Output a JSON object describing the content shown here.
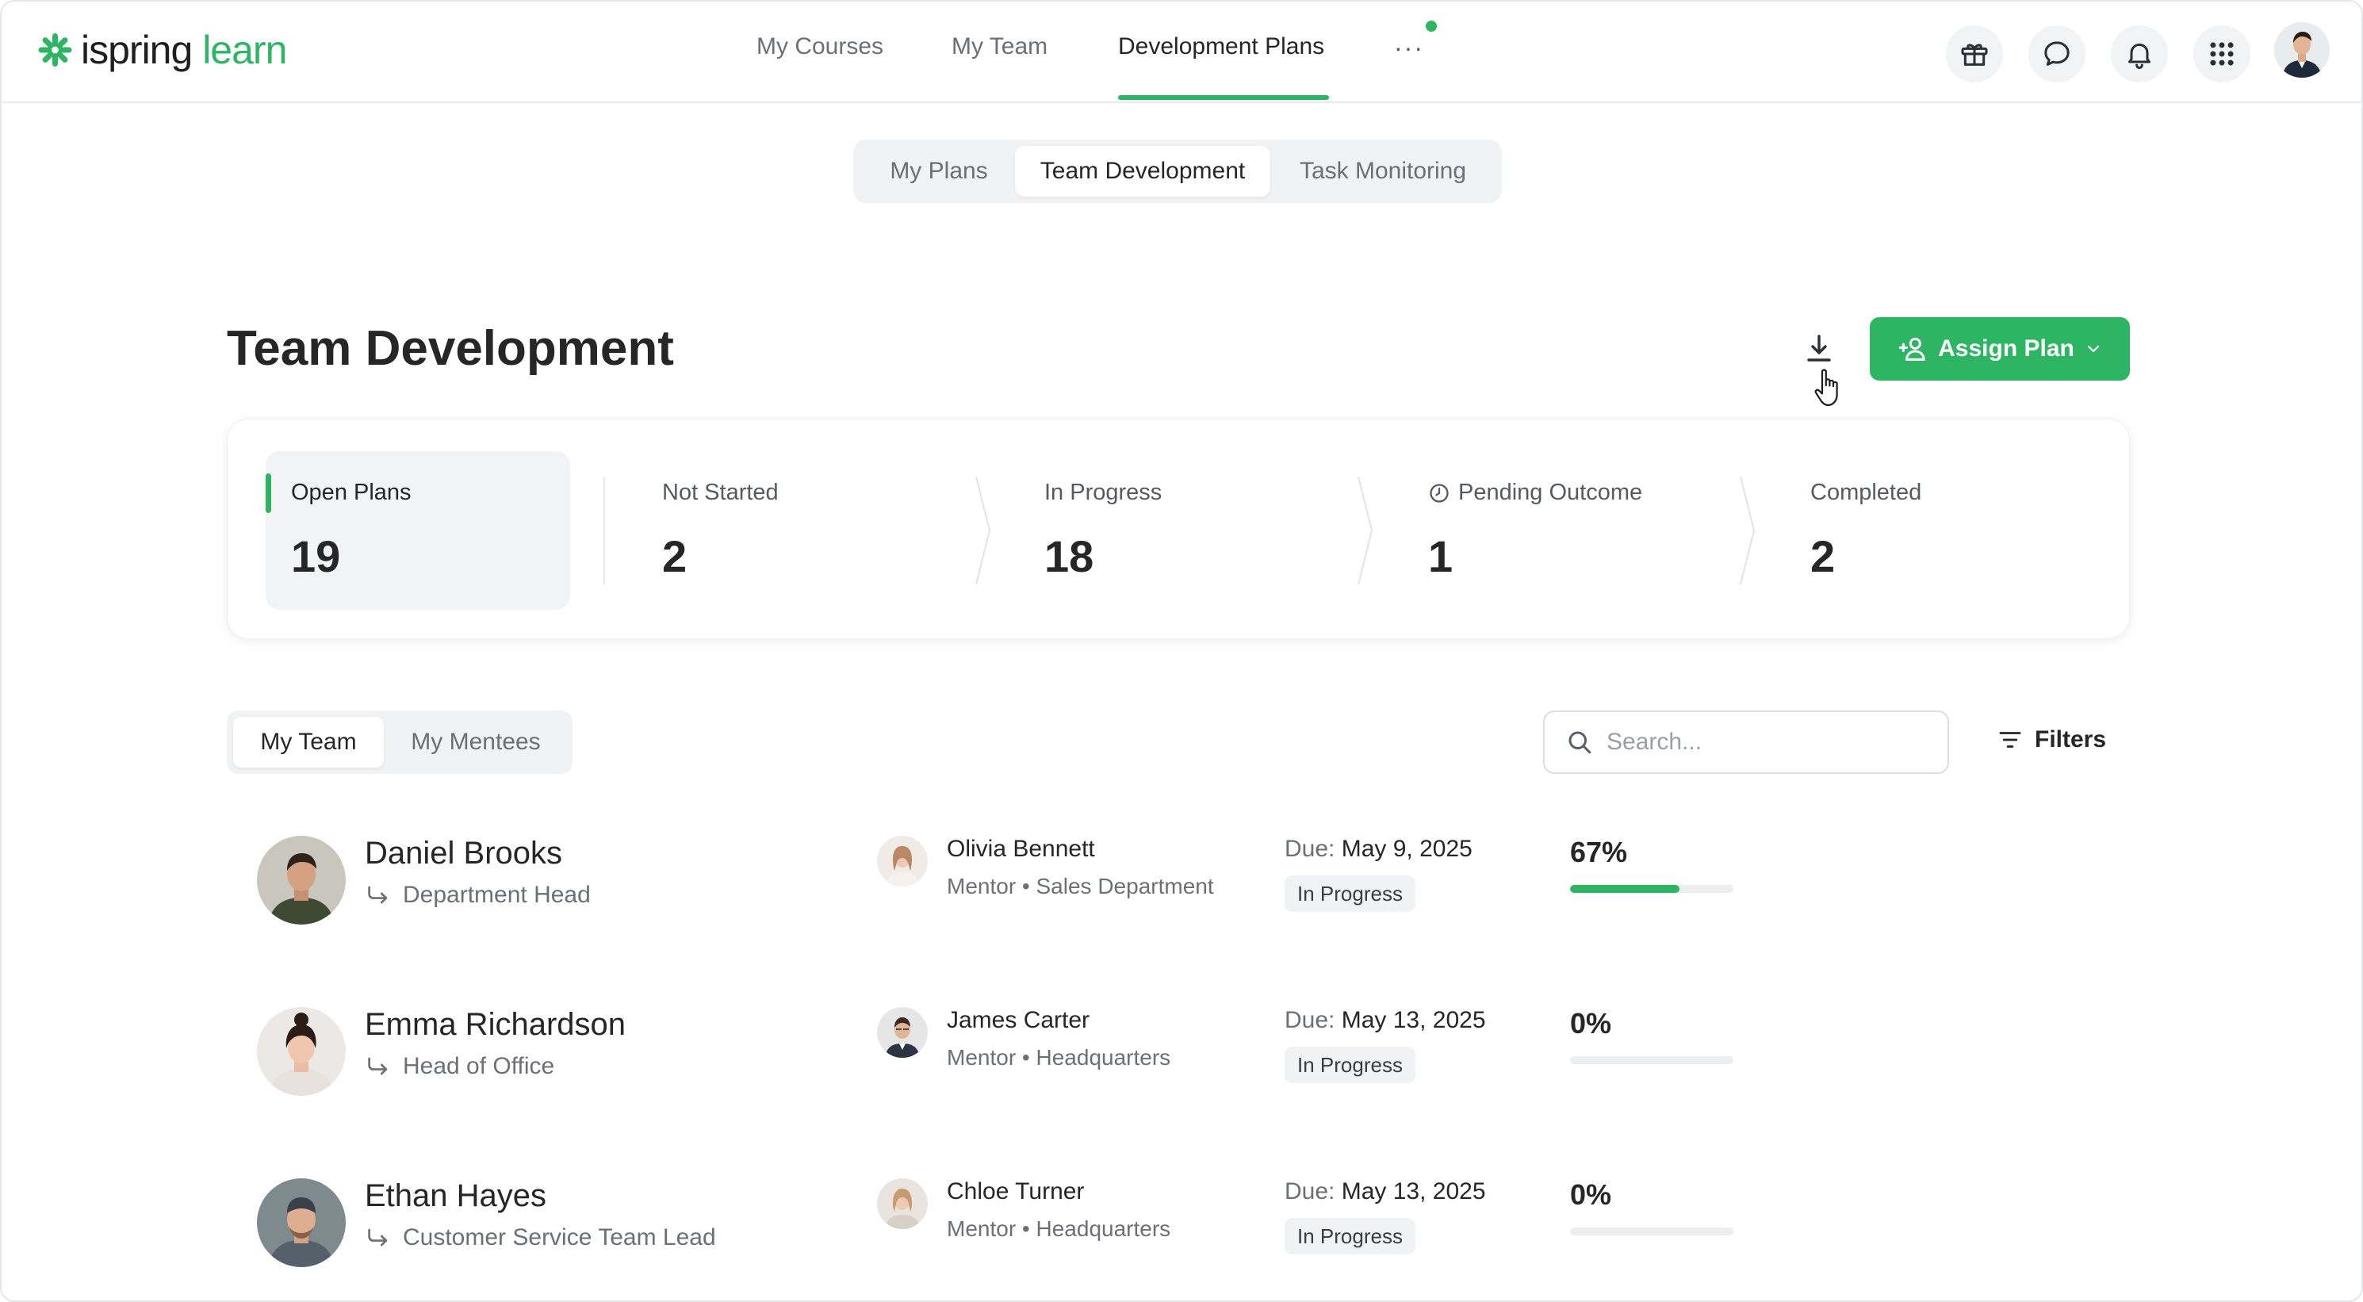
{
  "brand": {
    "name_part1": "ispring",
    "name_part2": "learn",
    "color": "#2eb564"
  },
  "nav": {
    "items": [
      {
        "label": "My Courses"
      },
      {
        "label": "My Team"
      },
      {
        "label": "Development Plans",
        "active": true
      }
    ],
    "more_label": "···"
  },
  "header_icons": [
    "gift-icon",
    "chat-icon",
    "bell-icon",
    "apps-grid-icon",
    "user-avatar"
  ],
  "main_tabs": [
    {
      "label": "My Plans"
    },
    {
      "label": "Team Development",
      "active": true
    },
    {
      "label": "Task Monitoring"
    }
  ],
  "page": {
    "title": "Team Development",
    "assign_button": "Assign Plan"
  },
  "stats": [
    {
      "label": "Open Plans",
      "value": "19",
      "active": true
    },
    {
      "label": "Not Started",
      "value": "2"
    },
    {
      "label": "In Progress",
      "value": "18"
    },
    {
      "label": "Pending Outcome",
      "value": "1",
      "icon": "clock-icon"
    },
    {
      "label": "Completed",
      "value": "2"
    }
  ],
  "sub_tabs": [
    {
      "label": "My Team",
      "active": true
    },
    {
      "label": "My Mentees"
    }
  ],
  "search": {
    "placeholder": "Search...",
    "value": ""
  },
  "filters_label": "Filters",
  "rows": [
    {
      "name": "Daniel Brooks",
      "role": "Department Head",
      "mentor": "Olivia Bennett",
      "mentor_sub": "Mentor • Sales Department",
      "due_key": "Due:",
      "due_date": "May 9, 2025",
      "status": "In Progress",
      "progress_label": "67%",
      "progress": 0.67
    },
    {
      "name": "Emma Richardson",
      "role": "Head of Office",
      "mentor": "James Carter",
      "mentor_sub": "Mentor • Headquarters",
      "due_key": "Due:",
      "due_date": "May 13, 2025",
      "status": "In Progress",
      "progress_label": "0%",
      "progress": 0
    },
    {
      "name": "Ethan Hayes",
      "role": "Customer Service Team Lead",
      "mentor": "Chloe Turner",
      "mentor_sub": "Mentor • Headquarters",
      "due_key": "Due:",
      "due_date": "May 13, 2025",
      "status": "In Progress",
      "progress_label": "0%",
      "progress": 0
    }
  ]
}
